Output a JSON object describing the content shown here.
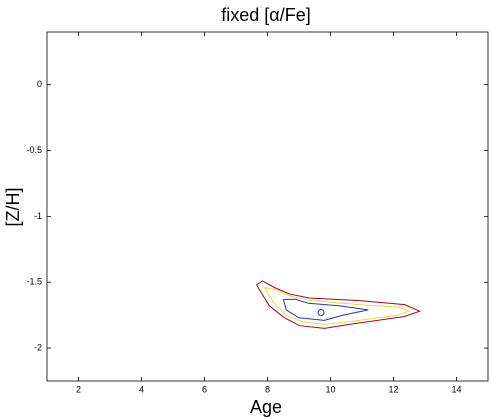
{
  "chart_data": {
    "type": "contour",
    "title": "fixed [α/Fe]",
    "x_label": "Age",
    "y_label": "[Z/H]",
    "xlim": [
      1,
      15
    ],
    "ylim": [
      -2.25,
      0.4
    ],
    "xticks": [
      2,
      4,
      6,
      8,
      10,
      12,
      14
    ],
    "yticks": [
      -2,
      -1.5,
      -1,
      -0.5,
      0
    ],
    "series": [
      {
        "color": "#b00020",
        "x": [
          7.65,
          7.84,
          8.22,
          8.7,
          9.33,
          10.92,
          12.35,
          12.83,
          12.35,
          10.6,
          9.81,
          9.02,
          8.54,
          8.06,
          7.65
        ],
        "y": [
          -1.52,
          -1.49,
          -1.54,
          -1.59,
          -1.62,
          -1.64,
          -1.67,
          -1.72,
          -1.76,
          -1.82,
          -1.85,
          -1.83,
          -1.77,
          -1.68,
          -1.52
        ]
      },
      {
        "color": "#e0e040",
        "x": [
          7.9,
          8.3,
          8.8,
          9.4,
          10.9,
          12.2,
          12.5,
          12.1,
          10.6,
          9.8,
          9.1,
          8.6,
          8.2,
          7.9
        ],
        "y": [
          -1.54,
          -1.56,
          -1.61,
          -1.64,
          -1.67,
          -1.69,
          -1.72,
          -1.75,
          -1.8,
          -1.82,
          -1.8,
          -1.75,
          -1.66,
          -1.54
        ]
      },
      {
        "color": "#2030e0",
        "x": [
          8.5,
          8.9,
          9.3,
          10.3,
          11.2,
          10.4,
          9.8,
          9.0,
          8.6,
          8.5
        ],
        "y": [
          -1.63,
          -1.63,
          -1.66,
          -1.68,
          -1.71,
          -1.75,
          -1.79,
          -1.77,
          -1.71,
          -1.63
        ]
      }
    ],
    "point": {
      "color": "#2030e0",
      "x": 9.7,
      "y": -1.73
    }
  }
}
